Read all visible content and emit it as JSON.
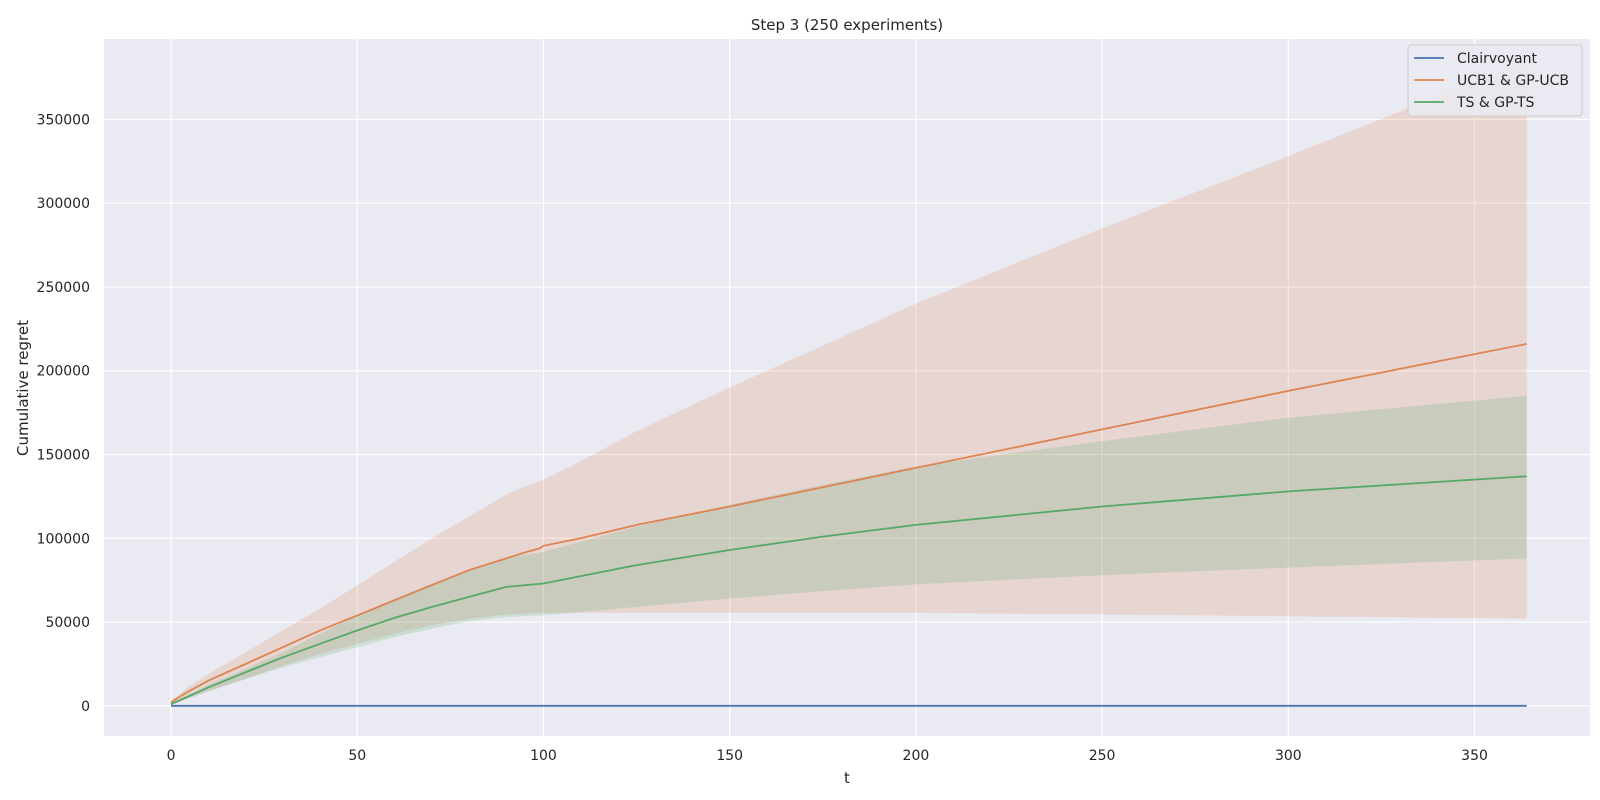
{
  "chart_data": {
    "type": "line",
    "title": "Step 3 (250 experiments)",
    "xlabel": "t",
    "ylabel": "Cumulative regret",
    "xlim": [
      -18,
      381
    ],
    "ylim": [
      -18000,
      398000
    ],
    "xticks": [
      0,
      50,
      100,
      150,
      200,
      250,
      300,
      350
    ],
    "yticks": [
      0,
      50000,
      100000,
      150000,
      200000,
      250000,
      300000,
      350000
    ],
    "grid": true,
    "legend_position": "top-right",
    "series": [
      {
        "name": "Clairvoyant",
        "color": "#4c72b0",
        "x": [
          0,
          364
        ],
        "mean": [
          0,
          0
        ]
      },
      {
        "name": "UCB1 & GP-UCB",
        "color": "#dd8452",
        "x": [
          0,
          2,
          5,
          10,
          20,
          30,
          40,
          50,
          60,
          70,
          80,
          90,
          95,
          99,
          100,
          110,
          125,
          150,
          175,
          200,
          250,
          300,
          364
        ],
        "mean": [
          2000,
          5000,
          9000,
          15000,
          25000,
          35000,
          45000,
          54000,
          63000,
          72000,
          81000,
          88000,
          91500,
          94000,
          95500,
          100000,
          108000,
          119000,
          130500,
          142000,
          165000,
          188000,
          216000
        ],
        "lower": [
          1000,
          2500,
          5000,
          9000,
          16000,
          24000,
          31000,
          37000,
          43000,
          48000,
          52000,
          54500,
          55000,
          55500,
          55500,
          55500,
          55500,
          55500,
          55500,
          55500,
          54500,
          53500,
          52000
        ],
        "upper": [
          3000,
          6500,
          12000,
          19000,
          32000,
          45000,
          58000,
          72000,
          86000,
          100000,
          113000,
          126000,
          131000,
          134000,
          135000,
          146000,
          164000,
          190000,
          215000,
          240000,
          285000,
          328000,
          385000
        ]
      },
      {
        "name": "TS & GP-TS",
        "color": "#55a868",
        "x": [
          0,
          5,
          10,
          20,
          30,
          40,
          50,
          60,
          70,
          80,
          90,
          100,
          125,
          150,
          175,
          200,
          250,
          300,
          364
        ],
        "mean": [
          1000,
          6000,
          11000,
          20000,
          29000,
          37000,
          45000,
          52500,
          59000,
          65000,
          71000,
          73000,
          84000,
          93000,
          101000,
          108000,
          119000,
          128000,
          137000
        ],
        "lower": [
          500,
          4500,
          8500,
          16000,
          23000,
          29000,
          35000,
          41000,
          46000,
          50500,
          53000,
          54000,
          59000,
          64000,
          68500,
          72500,
          78000,
          82500,
          88000
        ],
        "upper": [
          1500,
          7000,
          12500,
          22000,
          32000,
          43000,
          54000,
          64000,
          73000,
          81000,
          88000,
          92000,
          107000,
          120000,
          132000,
          143000,
          158000,
          172000,
          185000
        ]
      }
    ]
  }
}
